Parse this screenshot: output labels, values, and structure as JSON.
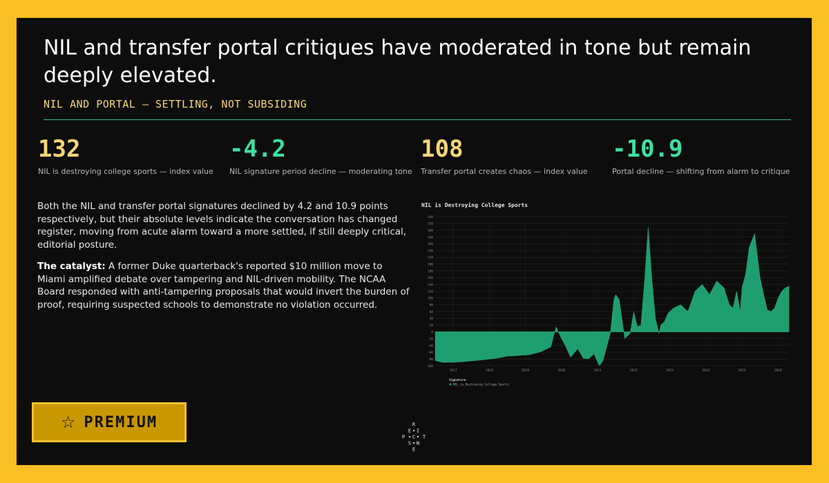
{
  "header": {
    "title": "NIL and transfer portal critiques have moderated in tone but remain deeply elevated.",
    "subtitle": "NIL AND PORTAL — SETTLING, NOT SUBSIDING"
  },
  "stats": [
    {
      "value": "132",
      "label": "NIL is destroying college sports — index value"
    },
    {
      "value": "-4.2",
      "label": "NIL signature period decline — moderating tone"
    },
    {
      "value": "108",
      "label": "Transfer portal creates chaos — index value"
    },
    {
      "value": "-10.9",
      "label": "Portal decline — shifting from alarm to critique"
    }
  ],
  "body": {
    "paragraph1": "Both the NIL and transfer portal signatures declined by 4.2 and 10.9 points respectively, but their absolute levels indicate the conversation has changed register, moving from acute alarm toward a more settled, if still deeply critical, editorial posture.",
    "catalyst_label": "The catalyst:",
    "paragraph2": "A former Duke quarterback's reported $10 million move to Miami amplified debate over tampering and NIL-driven mobility. The NCAA Board responded with anti-tampering proposals that would invert the burden of proof, requiring suspected schools to demonstrate no violation occurred."
  },
  "premium": {
    "label": "PREMIUM",
    "icon": "star-outline-icon"
  },
  "logo": {
    "letters": [
      "R",
      "E",
      "I",
      "P",
      "C",
      "T",
      "S",
      "N",
      "E"
    ]
  },
  "colors": {
    "accent_green": "#3ee0a0",
    "accent_yellow": "#f7d57a",
    "area_fill": "#1f9e72",
    "background": "#fbbf24"
  },
  "chart_data": {
    "type": "area",
    "title": "NIL is Destroying College Sports",
    "legend_title": "Signature",
    "legend_position": "bottom-left",
    "series": [
      {
        "name": "NIL is Destroying College Sports",
        "x": [
          2016.5,
          2016.7,
          2017.0,
          2017.3,
          2017.6,
          2017.9,
          2018.2,
          2018.5,
          2018.8,
          2019.1,
          2019.4,
          2019.7,
          2019.85,
          2019.95,
          2020.1,
          2020.25,
          2020.45,
          2020.6,
          2020.75,
          2020.9,
          2021.0,
          2021.05,
          2021.15,
          2021.25,
          2021.35,
          2021.45,
          2021.5,
          2021.6,
          2021.75,
          2021.9,
          2022.0,
          2022.1,
          2022.2,
          2022.3,
          2022.4,
          2022.5,
          2022.6,
          2022.7,
          2022.75,
          2022.85,
          2022.95,
          2023.1,
          2023.3,
          2023.5,
          2023.7,
          2023.9,
          2024.1,
          2024.3,
          2024.5,
          2024.65,
          2024.75,
          2024.85,
          2024.95,
          2025.0,
          2025.1,
          2025.2,
          2025.35,
          2025.5,
          2025.6,
          2025.7,
          2025.8,
          2025.9,
          2026.0,
          2026.1,
          2026.2,
          2026.3
        ],
        "values": [
          -85,
          -90,
          -90,
          -88,
          -85,
          -82,
          -78,
          -72,
          -70,
          -68,
          -60,
          -45,
          15,
          -10,
          -40,
          -75,
          -50,
          -78,
          -80,
          -65,
          -90,
          -100,
          -85,
          -45,
          -5,
          95,
          110,
          95,
          -20,
          -5,
          60,
          15,
          20,
          150,
          310,
          160,
          40,
          -5,
          20,
          30,
          55,
          70,
          80,
          60,
          120,
          140,
          110,
          150,
          130,
          80,
          70,
          120,
          60,
          130,
          170,
          250,
          290,
          160,
          110,
          65,
          60,
          70,
          100,
          120,
          130,
          135
        ]
      }
    ],
    "xlim": [
      2016.5,
      2026.3
    ],
    "ylim": [
      -100,
      340
    ],
    "xticks": [
      "2017",
      "2018",
      "2019",
      "2020",
      "2021",
      "2022",
      "2023",
      "2024",
      "2025",
      "2026"
    ],
    "yticks": [
      "-100",
      "-80",
      "-60",
      "-40",
      "-20",
      "0",
      "20",
      "40",
      "60",
      "80",
      "100",
      "120",
      "140",
      "160",
      "180",
      "200",
      "220",
      "240",
      "260",
      "280",
      "300",
      "320",
      "340"
    ],
    "grid": true
  }
}
